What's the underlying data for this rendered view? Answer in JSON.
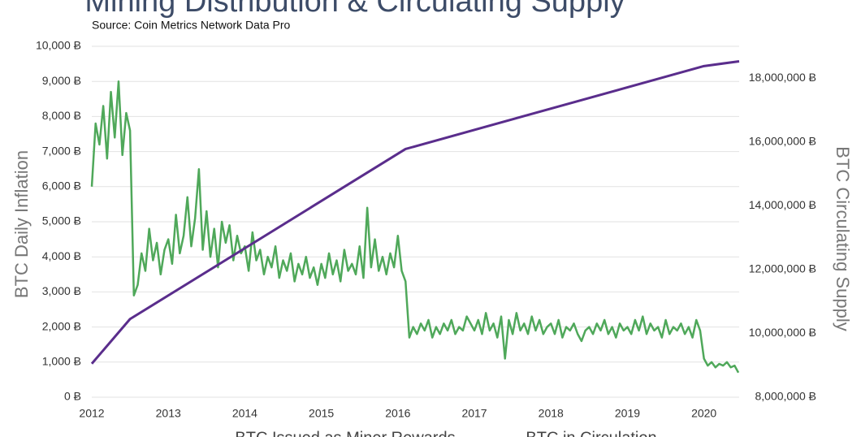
{
  "chart_data": {
    "type": "line",
    "title": "Mining Distribution & Circulating Supply",
    "subtitle": "Source: Coin Metrics Network Data Pro",
    "ylabel": "BTC  Daily Inflation",
    "y2label": "BTC  Circulating Supply",
    "xlim": [
      2012,
      2020.46
    ],
    "xticks": [
      2012,
      2013,
      2014,
      2015,
      2016,
      2017,
      2018,
      2019,
      2020
    ],
    "ylim": [
      0,
      10000
    ],
    "yticks": [
      {
        "value": 0,
        "label": "0 Ƀ"
      },
      {
        "value": 1000,
        "label": "1,000 Ƀ"
      },
      {
        "value": 2000,
        "label": "2,000 Ƀ"
      },
      {
        "value": 3000,
        "label": "3,000 Ƀ"
      },
      {
        "value": 4000,
        "label": "4,000 Ƀ"
      },
      {
        "value": 5000,
        "label": "5,000 Ƀ"
      },
      {
        "value": 6000,
        "label": "6,000 Ƀ"
      },
      {
        "value": 7000,
        "label": "7,000 Ƀ"
      },
      {
        "value": 8000,
        "label": "8,000 Ƀ"
      },
      {
        "value": 9000,
        "label": "9,000 Ƀ"
      },
      {
        "value": 10000,
        "label": "10,000 Ƀ"
      }
    ],
    "y2lim": [
      8000000,
      19000000
    ],
    "y2ticks": [
      {
        "value": 8000000,
        "label": "8,000,000 Ƀ"
      },
      {
        "value": 10000000,
        "label": "10,000,000 Ƀ"
      },
      {
        "value": 12000000,
        "label": "12,000,000 Ƀ"
      },
      {
        "value": 14000000,
        "label": "14,000,000 Ƀ"
      },
      {
        "value": 16000000,
        "label": "16,000,000 Ƀ"
      },
      {
        "value": 18000000,
        "label": "18,000,000 Ƀ"
      }
    ],
    "grid": true,
    "series": [
      {
        "name": "BTC Issued as Miner Rewards",
        "color": "#4fa85a",
        "x": [
          2012,
          2012.05,
          2012.1,
          2012.15,
          2012.2,
          2012.25,
          2012.3,
          2012.35,
          2012.4,
          2012.45,
          2012.5,
          2012.55,
          2012.6,
          2012.65,
          2012.7,
          2012.75,
          2012.8,
          2012.85,
          2012.9,
          2012.95,
          2013,
          2013.05,
          2013.1,
          2013.15,
          2013.2,
          2013.25,
          2013.3,
          2013.35,
          2013.4,
          2013.45,
          2013.5,
          2013.55,
          2013.6,
          2013.65,
          2013.7,
          2013.75,
          2013.8,
          2013.85,
          2013.9,
          2013.95,
          2014,
          2014.05,
          2014.1,
          2014.15,
          2014.2,
          2014.25,
          2014.3,
          2014.35,
          2014.4,
          2014.45,
          2014.5,
          2014.55,
          2014.6,
          2014.65,
          2014.7,
          2014.75,
          2014.8,
          2014.85,
          2014.9,
          2014.95,
          2015,
          2015.05,
          2015.1,
          2015.15,
          2015.2,
          2015.25,
          2015.3,
          2015.35,
          2015.4,
          2015.45,
          2015.5,
          2015.55,
          2015.6,
          2015.65,
          2015.7,
          2015.75,
          2015.8,
          2015.85,
          2015.9,
          2015.95,
          2016,
          2016.05,
          2016.1,
          2016.15,
          2016.2,
          2016.25,
          2016.3,
          2016.35,
          2016.4,
          2016.45,
          2016.5,
          2016.55,
          2016.6,
          2016.65,
          2016.7,
          2016.75,
          2016.8,
          2016.85,
          2016.9,
          2016.95,
          2017,
          2017.05,
          2017.1,
          2017.15,
          2017.2,
          2017.25,
          2017.3,
          2017.35,
          2017.4,
          2017.45,
          2017.5,
          2017.55,
          2017.6,
          2017.65,
          2017.7,
          2017.75,
          2017.8,
          2017.85,
          2017.9,
          2017.95,
          2018,
          2018.05,
          2018.1,
          2018.15,
          2018.2,
          2018.25,
          2018.3,
          2018.35,
          2018.4,
          2018.45,
          2018.5,
          2018.55,
          2018.6,
          2018.65,
          2018.7,
          2018.75,
          2018.8,
          2018.85,
          2018.9,
          2018.95,
          2019,
          2019.05,
          2019.1,
          2019.15,
          2019.2,
          2019.25,
          2019.3,
          2019.35,
          2019.4,
          2019.45,
          2019.5,
          2019.55,
          2019.6,
          2019.65,
          2019.7,
          2019.75,
          2019.8,
          2019.85,
          2019.9,
          2019.95,
          2020,
          2020.05,
          2020.1,
          2020.15,
          2020.2,
          2020.25,
          2020.3,
          2020.35,
          2020.4,
          2020.45
        ],
        "values": [
          6000,
          7800,
          7200,
          8300,
          6800,
          8700,
          7400,
          9000,
          6900,
          8100,
          7600,
          2900,
          3200,
          4100,
          3600,
          4800,
          3900,
          4400,
          3500,
          4200,
          4500,
          3800,
          5200,
          4100,
          4600,
          5700,
          4300,
          5100,
          6500,
          4200,
          5300,
          4000,
          4800,
          3700,
          5000,
          4400,
          4900,
          3900,
          4600,
          4100,
          4300,
          3600,
          4700,
          3900,
          4200,
          3500,
          4000,
          3700,
          4300,
          3400,
          3900,
          3600,
          4100,
          3300,
          3800,
          3500,
          4000,
          3400,
          3700,
          3200,
          3800,
          3400,
          4100,
          3500,
          3900,
          3300,
          4200,
          3600,
          3800,
          3500,
          4300,
          3400,
          5400,
          3700,
          4500,
          3600,
          4000,
          3500,
          4100,
          3700,
          4600,
          3600,
          3300,
          1700,
          2000,
          1800,
          2100,
          1900,
          2200,
          1700,
          2000,
          1800,
          2100,
          1900,
          2200,
          1800,
          2000,
          1900,
          2300,
          2100,
          1900,
          2200,
          1800,
          2400,
          1900,
          2100,
          1700,
          2300,
          1100,
          2200,
          1800,
          2400,
          1900,
          2100,
          1800,
          2300,
          1900,
          2200,
          1800,
          2000,
          2100,
          1800,
          2200,
          1700,
          2000,
          1900,
          2100,
          1800,
          1600,
          1900,
          2000,
          1800,
          2100,
          1900,
          2200,
          1800,
          2000,
          1700,
          2100,
          1900,
          2000,
          1800,
          2200,
          1900,
          2300,
          1800,
          2100,
          1900,
          2000,
          1700,
          2200,
          1800,
          2000,
          1900,
          2100,
          1800,
          2000,
          1700,
          2200,
          1900,
          1100,
          900,
          1000,
          850,
          950,
          900,
          1000,
          850,
          900,
          700
        ]
      },
      {
        "name": "BTC in Circulation",
        "color": "#5a2d8c",
        "axis": "y2",
        "x": [
          2012,
          2012.5,
          2016.1,
          2020,
          2020.46
        ],
        "values": [
          9050000,
          10450000,
          15780000,
          18380000,
          18530000
        ]
      }
    ]
  }
}
